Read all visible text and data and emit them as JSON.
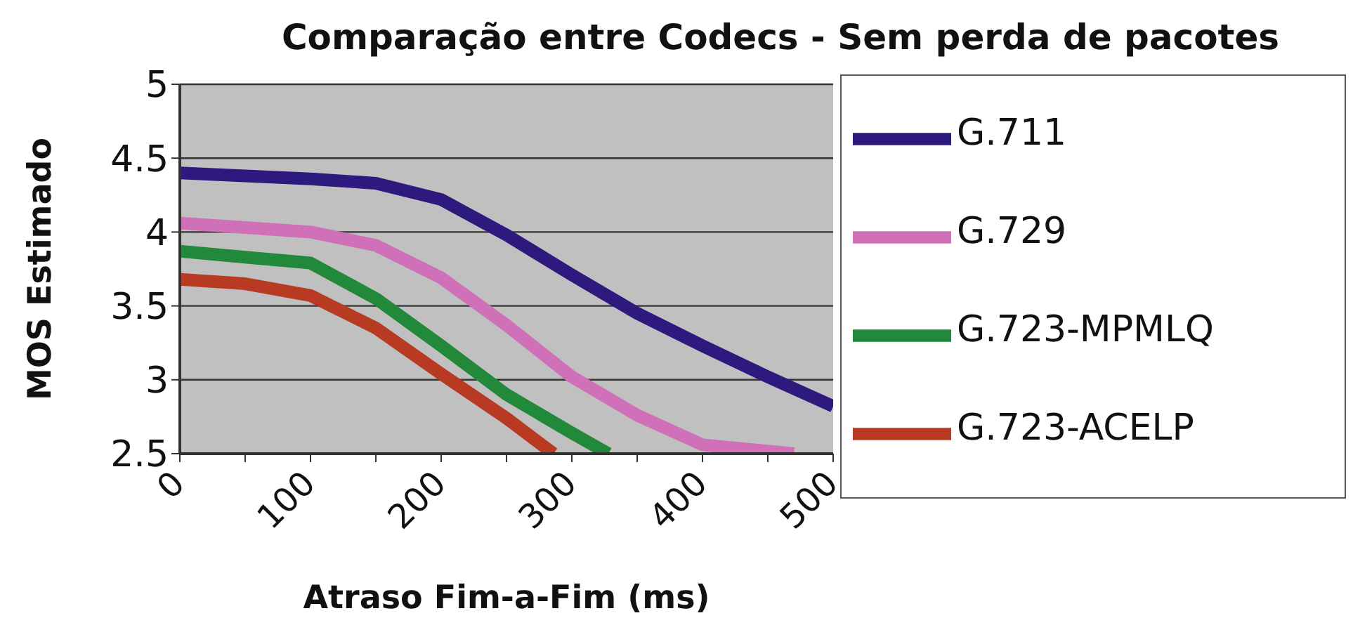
{
  "chart_data": {
    "type": "line",
    "title": "Comparação entre Codecs - Sem perda de pacotes",
    "xlabel": "Atraso Fim-a-Fim (ms)",
    "ylabel": "MOS Estimado",
    "xlim": [
      0,
      500
    ],
    "xticks": [
      0,
      {
        "value": 50,
        "label": null
      },
      100,
      {
        "value": 150,
        "label": null
      },
      200,
      {
        "value": 250,
        "label": null
      },
      300,
      {
        "value": 350,
        "label": null
      },
      400,
      {
        "value": 450,
        "label": null
      },
      500
    ],
    "ylim": [
      2.5,
      5
    ],
    "yticks": [
      2.5,
      3,
      3.5,
      4,
      4.5,
      5
    ],
    "grid": "y",
    "legend": "right",
    "marker": "none",
    "line_style": "solid",
    "series": [
      {
        "name": "G.711",
        "color": "#2e1a7e",
        "x": [
          0,
          50,
          100,
          150,
          200,
          250,
          300,
          350,
          400,
          450,
          500
        ],
        "values": [
          4.4,
          4.38,
          4.36,
          4.33,
          4.22,
          3.98,
          3.71,
          3.45,
          3.23,
          3.02,
          2.82
        ]
      },
      {
        "name": "G.729",
        "color": "#d070b8",
        "x": [
          0,
          50,
          100,
          150,
          200,
          250,
          300,
          350,
          400,
          470
        ],
        "values": [
          4.06,
          4.03,
          4.0,
          3.91,
          3.69,
          3.37,
          3.02,
          2.76,
          2.56,
          2.5
        ]
      },
      {
        "name": "G.723-MPMLQ",
        "color": "#22883a",
        "x": [
          0,
          50,
          100,
          150,
          200,
          250,
          300,
          328
        ],
        "values": [
          3.87,
          3.83,
          3.79,
          3.55,
          3.23,
          2.9,
          2.64,
          2.5
        ]
      },
      {
        "name": "G.723-ACELP",
        "color": "#b83a22",
        "x": [
          0,
          50,
          100,
          150,
          200,
          250,
          286
        ],
        "values": [
          3.68,
          3.65,
          3.57,
          3.35,
          3.04,
          2.74,
          2.5
        ]
      }
    ]
  }
}
